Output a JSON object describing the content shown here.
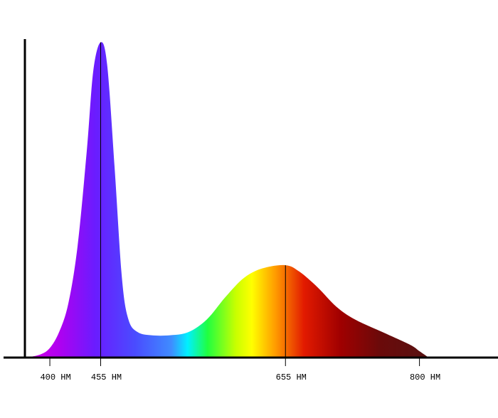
{
  "chart_data": {
    "type": "area",
    "x": [
      375,
      390,
      400,
      410,
      420,
      430,
      440,
      447,
      455,
      462,
      470,
      478,
      485,
      495,
      510,
      530,
      550,
      570,
      590,
      610,
      630,
      655,
      670,
      690,
      710,
      730,
      760,
      790,
      800,
      810
    ],
    "values": [
      0,
      1,
      3,
      8,
      17,
      35,
      65,
      90,
      99,
      92,
      60,
      25,
      12,
      8,
      7,
      7,
      8,
      12,
      19,
      25,
      28,
      29,
      27,
      22,
      16,
      12,
      8,
      4,
      2,
      0
    ],
    "xlim": [
      373,
      885
    ],
    "ylim": [
      0,
      100
    ],
    "xticks": [
      {
        "value": 400,
        "label": "400 HM"
      },
      {
        "value": 455,
        "label": "455 HM"
      },
      {
        "value": 655,
        "label": "655 HM"
      },
      {
        "value": 800,
        "label": "800 HM"
      }
    ]
  }
}
